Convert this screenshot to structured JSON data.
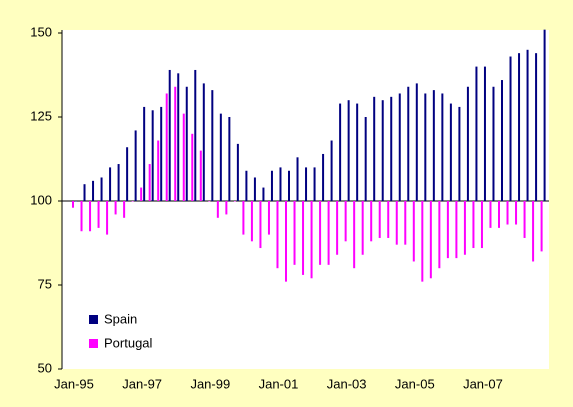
{
  "chart_data": {
    "type": "bar",
    "categories": [
      "Jan-95",
      null,
      null,
      null,
      null,
      null,
      null,
      null,
      "Jan-97",
      null,
      null,
      null,
      null,
      null,
      null,
      null,
      "Jan-99",
      null,
      null,
      null,
      null,
      null,
      null,
      null,
      "Jan-01",
      null,
      null,
      null,
      null,
      null,
      null,
      null,
      "Jan-03",
      null,
      null,
      null,
      null,
      null,
      null,
      null,
      "Jan-05",
      null,
      null,
      null,
      null,
      null,
      null,
      null,
      "Jan-07",
      null,
      null,
      null,
      null,
      null,
      null,
      null
    ],
    "series": [
      {
        "name": "Spain",
        "color": "#000080",
        "values": [
          100,
          105,
          106,
          107,
          110,
          111,
          116,
          121,
          128,
          127,
          128,
          139,
          138,
          134,
          139,
          135,
          133,
          126,
          125,
          117,
          109,
          107,
          104,
          109,
          110,
          109,
          113,
          110,
          110,
          114,
          118,
          129,
          130,
          129,
          125,
          131,
          130,
          131,
          132,
          134,
          135,
          132,
          133,
          132,
          129,
          128,
          134,
          140,
          140,
          134,
          136,
          143,
          144,
          145,
          144,
          151
        ]
      },
      {
        "name": "Portugal",
        "color": "#ff00ff",
        "values": [
          98,
          91,
          91,
          92,
          90,
          96,
          95,
          100,
          104,
          111,
          118,
          132,
          134,
          126,
          120,
          115,
          100,
          95,
          96,
          100,
          90,
          88,
          86,
          90,
          80,
          76,
          81,
          78,
          77,
          81,
          81,
          84,
          88,
          80,
          84,
          88,
          89,
          89,
          87,
          87,
          82,
          76,
          77,
          80,
          83,
          83,
          84,
          86,
          86,
          92,
          92,
          93,
          93,
          89,
          82,
          85
        ]
      }
    ],
    "ylim": [
      50,
      150
    ],
    "yticks": [
      50,
      75,
      100,
      125,
      150
    ],
    "baseline": 100,
    "legend": "lower-left"
  }
}
